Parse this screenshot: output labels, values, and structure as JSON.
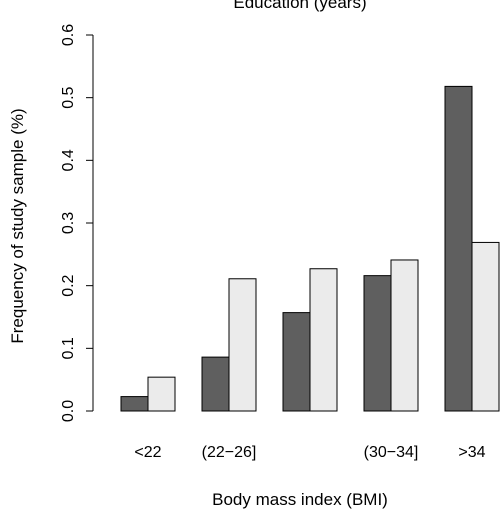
{
  "chart_data": {
    "type": "bar",
    "title": "Education (years)",
    "xlabel": "Body mass index (BMI)",
    "ylabel": "Frequency of study sample (%)",
    "ylim": [
      0,
      0.6
    ],
    "yticks": [
      "0.0",
      "0.1",
      "0.2",
      "0.3",
      "0.4",
      "0.5",
      "0.6"
    ],
    "categories": [
      "<22",
      "(22−26]",
      "",
      "(30−34]",
      ">34"
    ],
    "series": [
      {
        "values": [
          0.023,
          0.086,
          0.157,
          0.216,
          0.518
        ],
        "color": "#5f5f5f"
      },
      {
        "values": [
          0.054,
          0.211,
          0.227,
          0.241,
          0.269
        ],
        "color": "#ebebeb"
      }
    ],
    "grid": false
  }
}
